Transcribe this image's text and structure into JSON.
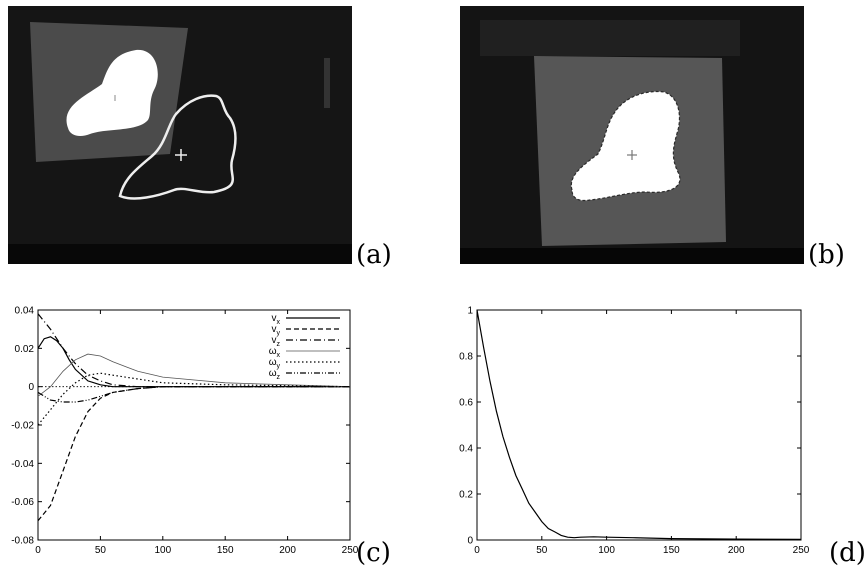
{
  "panels": {
    "a": {
      "label": "(a)"
    },
    "b": {
      "label": "(b)"
    },
    "c": {
      "label": "(c)"
    },
    "d": {
      "label": "(d)"
    }
  },
  "chart_data": [
    {
      "panel": "(c)",
      "type": "line",
      "xlim": [
        0,
        250
      ],
      "ylim": [
        -0.08,
        0.04
      ],
      "xticks": [
        0,
        50,
        100,
        150,
        200,
        250
      ],
      "yticks": [
        0.04,
        0.02,
        0,
        -0.02,
        -0.04,
        -0.06,
        -0.08
      ],
      "xtick_labels": [
        "0",
        "50",
        "100",
        "150",
        "200",
        "250"
      ],
      "ytick_labels": [
        "0.04",
        "0.02",
        "0",
        "-0.02",
        "-0.04",
        "-0.06",
        "-0.08"
      ],
      "legend_position": "top-right",
      "zero_line": true,
      "series": [
        {
          "name": "v",
          "sub": "x",
          "style": "solid",
          "x": [
            0,
            5,
            10,
            15,
            20,
            25,
            30,
            40,
            50,
            60,
            80,
            100,
            150,
            250
          ],
          "y": [
            0.02,
            0.025,
            0.026,
            0.024,
            0.02,
            0.014,
            0.009,
            0.003,
            0.001,
            0.0,
            0.0,
            0.0,
            0.0,
            0.0
          ]
        },
        {
          "name": "v",
          "sub": "y",
          "style": "dashed",
          "x": [
            0,
            10,
            20,
            30,
            40,
            50,
            60,
            80,
            100,
            150,
            250
          ],
          "y": [
            -0.07,
            -0.062,
            -0.044,
            -0.026,
            -0.013,
            -0.006,
            -0.003,
            -0.001,
            0.0,
            0.0,
            0.0
          ]
        },
        {
          "name": "v",
          "sub": "z",
          "style": "dash-dot",
          "x": [
            0,
            10,
            20,
            30,
            40,
            50,
            60,
            80,
            100,
            150,
            250
          ],
          "y": [
            0.038,
            0.03,
            0.02,
            0.012,
            0.006,
            0.003,
            0.001,
            0.0,
            0.0,
            0.0,
            0.0
          ]
        },
        {
          "name": "ω",
          "sub": "x",
          "style": "thin",
          "x": [
            0,
            10,
            20,
            30,
            40,
            50,
            60,
            80,
            100,
            150,
            200,
            250
          ],
          "y": [
            -0.005,
            0.0,
            0.008,
            0.014,
            0.017,
            0.016,
            0.013,
            0.008,
            0.005,
            0.002,
            0.001,
            0.0
          ]
        },
        {
          "name": "ω",
          "sub": "y",
          "style": "dotted",
          "x": [
            0,
            10,
            20,
            30,
            40,
            50,
            60,
            80,
            100,
            150,
            250
          ],
          "y": [
            -0.02,
            -0.012,
            -0.004,
            0.002,
            0.006,
            0.007,
            0.006,
            0.004,
            0.002,
            0.001,
            0.0
          ]
        },
        {
          "name": "ω",
          "sub": "z",
          "style": "dash-dot-dot",
          "x": [
            0,
            10,
            20,
            30,
            40,
            50,
            60,
            80,
            100,
            150,
            250
          ],
          "y": [
            -0.003,
            -0.007,
            -0.008,
            -0.008,
            -0.007,
            -0.005,
            -0.003,
            -0.001,
            0.0,
            0.0,
            0.0
          ]
        }
      ]
    },
    {
      "panel": "(d)",
      "type": "line",
      "xlim": [
        0,
        250
      ],
      "ylim": [
        0,
        1
      ],
      "xticks": [
        0,
        50,
        100,
        150,
        200,
        250
      ],
      "yticks": [
        1,
        0.8,
        0.6,
        0.4,
        0.2,
        0
      ],
      "xtick_labels": [
        "0",
        "50",
        "100",
        "150",
        "200",
        "250"
      ],
      "ytick_labels": [
        "1",
        "0.8",
        "0.6",
        "0.4",
        "0.2",
        "0"
      ],
      "series": [
        {
          "style": "solid",
          "x": [
            0,
            5,
            10,
            15,
            20,
            25,
            30,
            35,
            40,
            45,
            50,
            55,
            60,
            65,
            70,
            75,
            80,
            90,
            100,
            120,
            150,
            200,
            250
          ],
          "y": [
            1.0,
            0.84,
            0.69,
            0.56,
            0.45,
            0.36,
            0.28,
            0.22,
            0.16,
            0.12,
            0.08,
            0.05,
            0.035,
            0.02,
            0.012,
            0.01,
            0.012,
            0.014,
            0.012,
            0.01,
            0.006,
            0.004,
            0.003
          ]
        }
      ]
    }
  ]
}
